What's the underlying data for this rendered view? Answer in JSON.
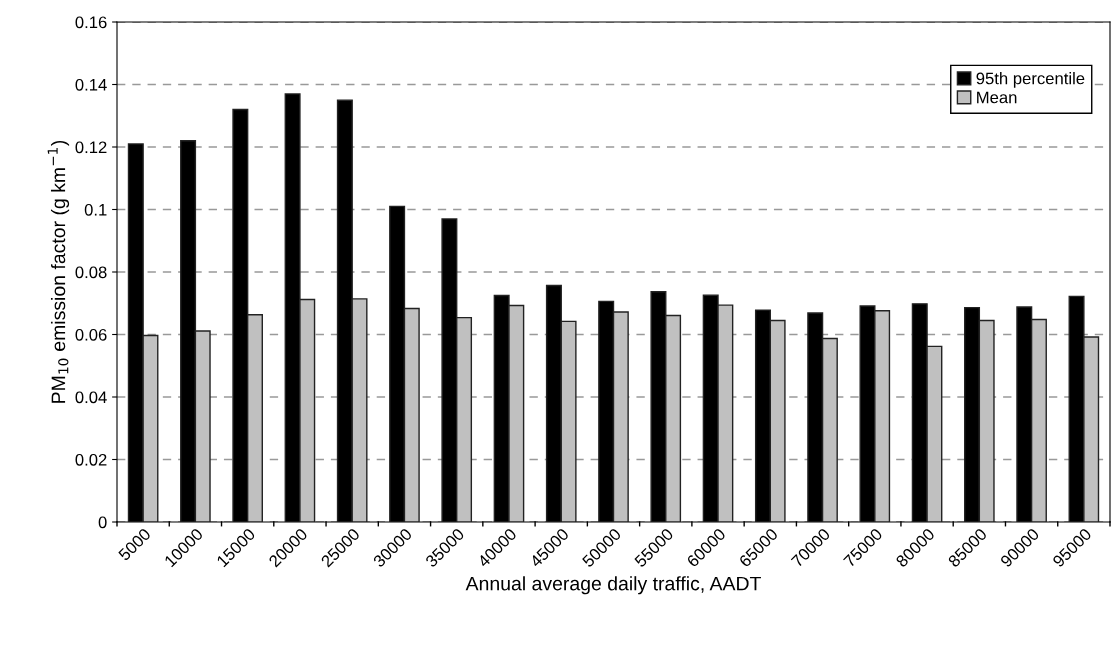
{
  "chart_data": {
    "type": "bar",
    "xlabel": "Annual average daily traffic, AADT",
    "ylabel": "PM$_{10}$ emission factor (g km$^{−1}$)",
    "categories": [
      "5000",
      "10000",
      "15000",
      "20000",
      "25000",
      "30000",
      "35000",
      "40000",
      "45000",
      "50000",
      "55000",
      "60000",
      "65000",
      "70000",
      "75000",
      "80000",
      "85000",
      "90000",
      "95000"
    ],
    "series": [
      {
        "name": "95th percentile",
        "color": "#000000",
        "values": [
          0.121,
          0.122,
          0.132,
          0.137,
          0.135,
          0.101,
          0.097,
          0.0725,
          0.0757,
          0.0706,
          0.0737,
          0.0726,
          0.0678,
          0.0669,
          0.0691,
          0.0698,
          0.0686,
          0.0688,
          0.0722
        ]
      },
      {
        "name": "Mean",
        "color": "#c0c0c0",
        "values": [
          0.0597,
          0.0611,
          0.0663,
          0.0712,
          0.0714,
          0.0683,
          0.0654,
          0.0693,
          0.0642,
          0.0672,
          0.0661,
          0.0694,
          0.0645,
          0.0587,
          0.0676,
          0.0562,
          0.0645,
          0.0648,
          0.0592
        ]
      }
    ],
    "ylim": [
      0,
      0.16
    ],
    "yticks": [
      0,
      0.02,
      0.04,
      0.06,
      0.08,
      0.1,
      0.12,
      0.14,
      0.16
    ],
    "grid": "y",
    "legend": "top right"
  }
}
